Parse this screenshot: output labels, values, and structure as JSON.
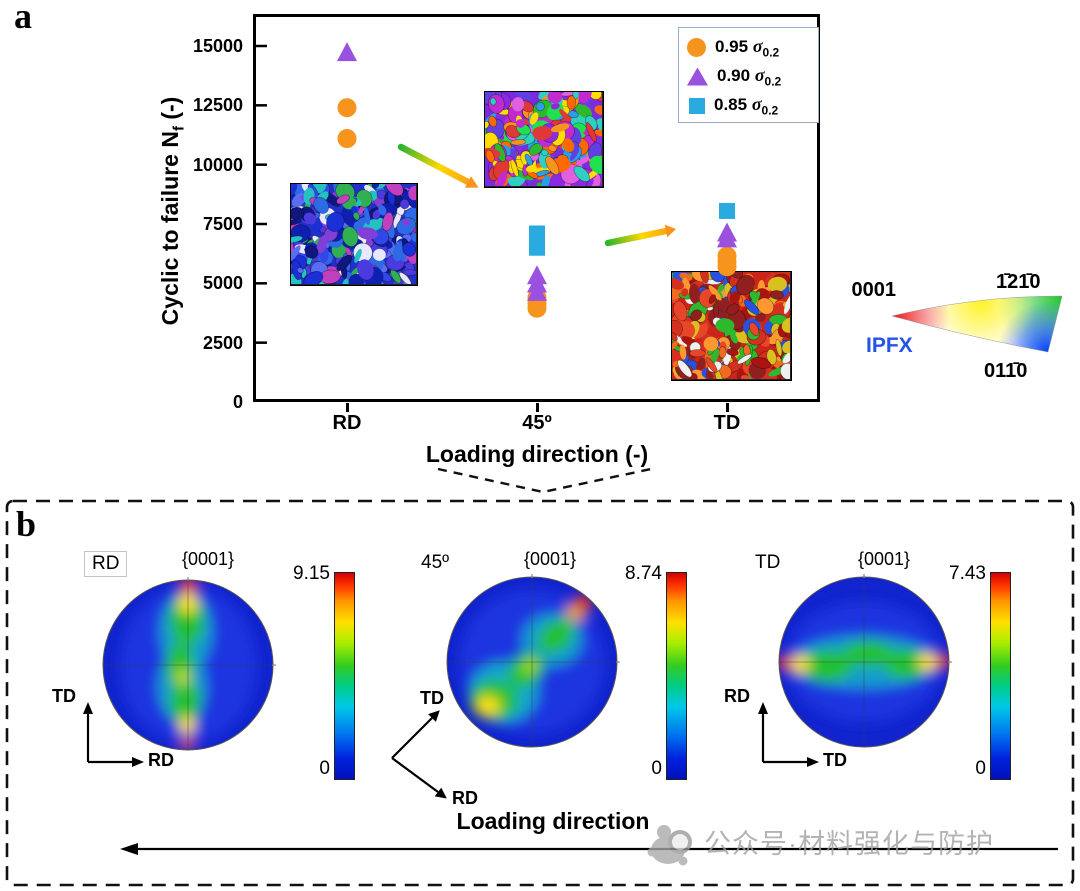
{
  "panel_a": {
    "label": "a",
    "y_axis_title": {
      "main": "Cyclic to failure N",
      "sub": "f",
      "tail": "  (-)"
    },
    "legend": {
      "items": [
        {
          "value": "0.95",
          "sigma": "σ",
          "sub": "0.2",
          "marker": "circle",
          "color": "#F7941E"
        },
        {
          "value": "0.90",
          "sigma": "σ",
          "sub": "0.2",
          "marker": "triangle",
          "color": "#9B51E0"
        },
        {
          "value": "0.85",
          "sigma": "σ",
          "sub": "0.2",
          "marker": "square",
          "color": "#29ABE2"
        }
      ]
    },
    "ipf_key": {
      "corner_top_left": "0001",
      "corner_top_right": "1̄21̄0",
      "corner_bottom_right": "011̄0",
      "label": "IPFX",
      "label_color": "#2553E9"
    }
  },
  "chart_data": {
    "type": "scatter",
    "title": "",
    "xlabel": "Loading direction (-)",
    "ylabel": "Cyclic to failure Nf (-)",
    "categories": [
      "RD",
      "45º",
      "TD"
    ],
    "ylim": [
      0,
      15000
    ],
    "yticks": [
      0,
      2500,
      5000,
      7500,
      10000,
      12500,
      15000
    ],
    "legend_position": "upper right",
    "series": [
      {
        "name": "0.95 σ0.2",
        "marker": "circle",
        "color": "#F7941E",
        "points": [
          [
            "RD",
            12400
          ],
          [
            "RD",
            11100
          ],
          [
            "45º",
            4400
          ],
          [
            "45º",
            4150
          ],
          [
            "45º",
            3950
          ],
          [
            "TD",
            6150
          ],
          [
            "TD",
            5900
          ],
          [
            "TD",
            5700
          ]
        ]
      },
      {
        "name": "0.90 σ0.2",
        "marker": "triangle",
        "color": "#9B51E0",
        "points": [
          [
            "RD",
            14700
          ],
          [
            "45º",
            5300
          ],
          [
            "45º",
            4950
          ],
          [
            "45º",
            4600
          ],
          [
            "TD",
            7100
          ],
          [
            "TD",
            6850
          ]
        ]
      },
      {
        "name": "0.85 σ0.2",
        "marker": "square",
        "color": "#29ABE2",
        "points": [
          [
            "45º",
            7100
          ],
          [
            "45º",
            6500
          ],
          [
            "TD",
            8050
          ]
        ]
      }
    ]
  },
  "ebsd_insets": [
    {
      "name": "ebsd-inset-rd",
      "palette": [
        "#2030c8",
        "#1b2fd6",
        "#3347e6",
        "#0f1fb0",
        "#5a6cf2",
        "#8040d8",
        "#2e6ae6",
        "#23c1c1",
        "#e8e8ff",
        "#c040c0",
        "#30b050",
        "#101880",
        "#4a3ae0"
      ]
    },
    {
      "name": "ebsd-inset-45",
      "palette": [
        "#7a2be0",
        "#c02ad0",
        "#8a2be2",
        "#f7941e",
        "#2eb82e",
        "#ffdd00",
        "#2a9fe5",
        "#e03838",
        "#30d0c0",
        "#e060e0",
        "#6040e0",
        "#ff6a00",
        "#20e050"
      ]
    },
    {
      "name": "ebsd-inset-td",
      "palette": [
        "#cc2418",
        "#d43020",
        "#e84628",
        "#a81410",
        "#f06a20",
        "#ff9830",
        "#2eb82e",
        "#2a50e0",
        "#f0f0f0",
        "#d8c020",
        "#902020"
      ]
    }
  ],
  "panel_b": {
    "label": "b",
    "pole_figures": [
      {
        "direction": "RD",
        "family": "{0001}",
        "scale_max": "9.15",
        "scale_min": "0",
        "axis_up": "TD",
        "axis_right": "RD"
      },
      {
        "direction": "45º",
        "family": "{0001}",
        "scale_max": "8.74",
        "scale_min": "0",
        "axis_up": "TD",
        "axis_right": "RD"
      },
      {
        "direction": "TD",
        "family": "{0001}",
        "scale_max": "7.43",
        "scale_min": "0",
        "axis_up": "RD",
        "axis_right": "TD"
      }
    ],
    "loading_direction_label": "Loading direction"
  },
  "watermark": {
    "text": "公众号·材料强化与防护"
  }
}
